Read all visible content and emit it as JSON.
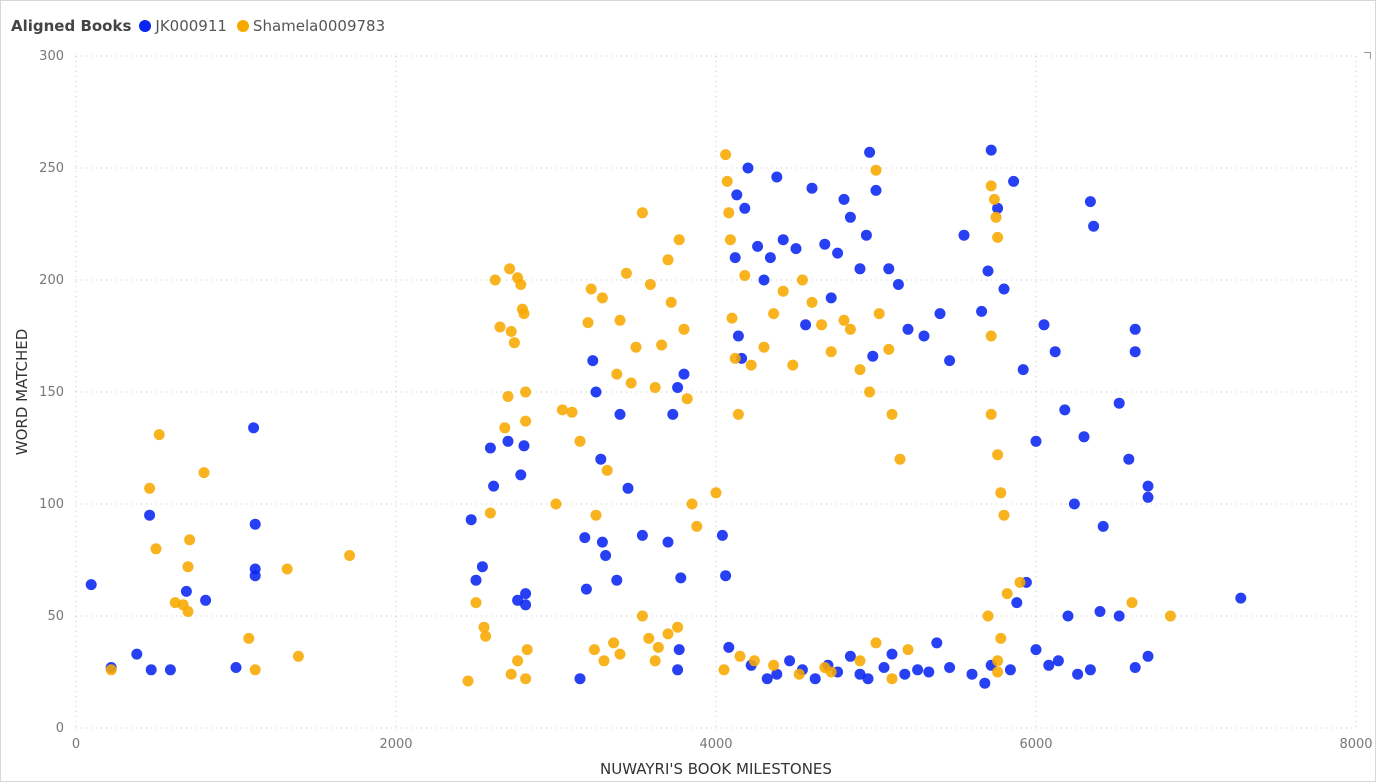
{
  "legend": {
    "title": "Aligned Books"
  },
  "colors": {
    "JK000911": "#0a25f2",
    "Shamela0009783": "#f7a900"
  },
  "chart_data": {
    "type": "scatter",
    "xlabel": "NUWAYRI'S BOOK MILESTONES",
    "ylabel": "WORD MATCHED",
    "xlim": [
      0,
      8000
    ],
    "ylim": [
      0,
      300
    ],
    "x_ticks": [
      "0",
      "2000",
      "4000",
      "6000",
      "8000"
    ],
    "y_ticks": [
      "0",
      "50",
      "100",
      "150",
      "200",
      "250",
      "300"
    ],
    "grid": true,
    "legend_position": "top-left",
    "series": [
      {
        "name": "JK000911",
        "points": [
          [
            95,
            64
          ],
          [
            220,
            27
          ],
          [
            380,
            33
          ],
          [
            460,
            95
          ],
          [
            470,
            26
          ],
          [
            590,
            26
          ],
          [
            690,
            61
          ],
          [
            810,
            57
          ],
          [
            1000,
            27
          ],
          [
            1110,
            134
          ],
          [
            1120,
            91
          ],
          [
            1120,
            71
          ],
          [
            1120,
            68
          ],
          [
            2470,
            93
          ],
          [
            2500,
            66
          ],
          [
            2540,
            72
          ],
          [
            2590,
            125
          ],
          [
            2610,
            108
          ],
          [
            2700,
            128
          ],
          [
            2760,
            57
          ],
          [
            2780,
            113
          ],
          [
            2800,
            126
          ],
          [
            2810,
            60
          ],
          [
            2810,
            55
          ],
          [
            3150,
            22
          ],
          [
            3180,
            85
          ],
          [
            3190,
            62
          ],
          [
            3230,
            164
          ],
          [
            3250,
            150
          ],
          [
            3280,
            120
          ],
          [
            3290,
            83
          ],
          [
            3310,
            77
          ],
          [
            3380,
            66
          ],
          [
            3400,
            140
          ],
          [
            3450,
            107
          ],
          [
            3540,
            86
          ],
          [
            3700,
            83
          ],
          [
            3730,
            140
          ],
          [
            3760,
            152
          ],
          [
            3770,
            35
          ],
          [
            3760,
            26
          ],
          [
            3780,
            67
          ],
          [
            3800,
            158
          ],
          [
            4040,
            86
          ],
          [
            4060,
            68
          ],
          [
            4080,
            36
          ],
          [
            4120,
            210
          ],
          [
            4130,
            238
          ],
          [
            4140,
            175
          ],
          [
            4160,
            165
          ],
          [
            4180,
            232
          ],
          [
            4200,
            250
          ],
          [
            4260,
            215
          ],
          [
            4300,
            200
          ],
          [
            4340,
            210
          ],
          [
            4380,
            246
          ],
          [
            4420,
            218
          ],
          [
            4500,
            214
          ],
          [
            4560,
            180
          ],
          [
            4600,
            241
          ],
          [
            4680,
            216
          ],
          [
            4720,
            192
          ],
          [
            4760,
            212
          ],
          [
            4800,
            236
          ],
          [
            4840,
            228
          ],
          [
            4900,
            205
          ],
          [
            4940,
            220
          ],
          [
            4960,
            257
          ],
          [
            4980,
            166
          ],
          [
            5000,
            240
          ],
          [
            5080,
            205
          ],
          [
            5140,
            198
          ],
          [
            5200,
            178
          ],
          [
            5300,
            175
          ],
          [
            5400,
            185
          ],
          [
            5460,
            164
          ],
          [
            5550,
            220
          ],
          [
            5660,
            186
          ],
          [
            5700,
            204
          ],
          [
            5720,
            258
          ],
          [
            5760,
            232
          ],
          [
            5800,
            196
          ],
          [
            5860,
            244
          ],
          [
            5920,
            160
          ],
          [
            6000,
            128
          ],
          [
            6050,
            180
          ],
          [
            6120,
            168
          ],
          [
            6180,
            142
          ],
          [
            6240,
            100
          ],
          [
            6300,
            130
          ],
          [
            6340,
            235
          ],
          [
            6360,
            224
          ],
          [
            6420,
            90
          ],
          [
            6520,
            145
          ],
          [
            6580,
            120
          ],
          [
            6620,
            178
          ],
          [
            6620,
            168
          ],
          [
            6700,
            108
          ],
          [
            6700,
            103
          ],
          [
            7280,
            58
          ],
          [
            4220,
            28
          ],
          [
            4320,
            22
          ],
          [
            4380,
            24
          ],
          [
            4460,
            30
          ],
          [
            4540,
            26
          ],
          [
            4620,
            22
          ],
          [
            4700,
            28
          ],
          [
            4760,
            25
          ],
          [
            4840,
            32
          ],
          [
            4900,
            24
          ],
          [
            4950,
            22
          ],
          [
            5050,
            27
          ],
          [
            5100,
            33
          ],
          [
            5180,
            24
          ],
          [
            5260,
            26
          ],
          [
            5330,
            25
          ],
          [
            5380,
            38
          ],
          [
            5460,
            27
          ],
          [
            5600,
            24
          ],
          [
            5680,
            20
          ],
          [
            5720,
            28
          ],
          [
            5840,
            26
          ],
          [
            5880,
            56
          ],
          [
            5940,
            65
          ],
          [
            6000,
            35
          ],
          [
            6080,
            28
          ],
          [
            6140,
            30
          ],
          [
            6200,
            50
          ],
          [
            6260,
            24
          ],
          [
            6340,
            26
          ],
          [
            6400,
            52
          ],
          [
            6520,
            50
          ],
          [
            6620,
            27
          ],
          [
            6700,
            32
          ]
        ]
      },
      {
        "name": "Shamela0009783",
        "points": [
          [
            220,
            26
          ],
          [
            460,
            107
          ],
          [
            500,
            80
          ],
          [
            520,
            131
          ],
          [
            620,
            56
          ],
          [
            670,
            55
          ],
          [
            700,
            52
          ],
          [
            700,
            72
          ],
          [
            710,
            84
          ],
          [
            800,
            114
          ],
          [
            1080,
            40
          ],
          [
            1120,
            26
          ],
          [
            1320,
            71
          ],
          [
            1390,
            32
          ],
          [
            1710,
            77
          ],
          [
            2450,
            21
          ],
          [
            2500,
            56
          ],
          [
            2550,
            45
          ],
          [
            2560,
            41
          ],
          [
            2590,
            96
          ],
          [
            2620,
            200
          ],
          [
            2650,
            179
          ],
          [
            2680,
            134
          ],
          [
            2700,
            148
          ],
          [
            2710,
            205
          ],
          [
            2720,
            177
          ],
          [
            2740,
            172
          ],
          [
            2760,
            201
          ],
          [
            2780,
            198
          ],
          [
            2790,
            187
          ],
          [
            2800,
            185
          ],
          [
            2810,
            150
          ],
          [
            2810,
            137
          ],
          [
            2820,
            35
          ],
          [
            2720,
            24
          ],
          [
            2810,
            22
          ],
          [
            2760,
            30
          ],
          [
            3000,
            100
          ],
          [
            3040,
            142
          ],
          [
            3100,
            141
          ],
          [
            3150,
            128
          ],
          [
            3200,
            181
          ],
          [
            3220,
            196
          ],
          [
            3250,
            95
          ],
          [
            3290,
            192
          ],
          [
            3320,
            115
          ],
          [
            3360,
            38
          ],
          [
            3380,
            158
          ],
          [
            3400,
            182
          ],
          [
            3440,
            203
          ],
          [
            3470,
            154
          ],
          [
            3500,
            170
          ],
          [
            3540,
            230
          ],
          [
            3590,
            198
          ],
          [
            3620,
            152
          ],
          [
            3660,
            171
          ],
          [
            3700,
            209
          ],
          [
            3720,
            190
          ],
          [
            3770,
            218
          ],
          [
            3800,
            178
          ],
          [
            3820,
            147
          ],
          [
            3850,
            100
          ],
          [
            3880,
            90
          ],
          [
            3540,
            50
          ],
          [
            3580,
            40
          ],
          [
            3640,
            36
          ],
          [
            3700,
            42
          ],
          [
            3760,
            45
          ],
          [
            3620,
            30
          ],
          [
            3400,
            33
          ],
          [
            3300,
            30
          ],
          [
            3240,
            35
          ],
          [
            4000,
            105
          ],
          [
            4060,
            256
          ],
          [
            4070,
            244
          ],
          [
            4080,
            230
          ],
          [
            4090,
            218
          ],
          [
            4100,
            183
          ],
          [
            4120,
            165
          ],
          [
            4140,
            140
          ],
          [
            4180,
            202
          ],
          [
            4220,
            162
          ],
          [
            4300,
            170
          ],
          [
            4360,
            185
          ],
          [
            4420,
            195
          ],
          [
            4480,
            162
          ],
          [
            4540,
            200
          ],
          [
            4600,
            190
          ],
          [
            4660,
            180
          ],
          [
            4720,
            168
          ],
          [
            4800,
            182
          ],
          [
            4840,
            178
          ],
          [
            4900,
            160
          ],
          [
            4960,
            150
          ],
          [
            5000,
            249
          ],
          [
            5020,
            185
          ],
          [
            5080,
            169
          ],
          [
            5100,
            140
          ],
          [
            5150,
            120
          ],
          [
            4050,
            26
          ],
          [
            4150,
            32
          ],
          [
            4240,
            30
          ],
          [
            4360,
            28
          ],
          [
            4520,
            24
          ],
          [
            4680,
            27
          ],
          [
            4720,
            25
          ],
          [
            4900,
            30
          ],
          [
            5000,
            38
          ],
          [
            5100,
            22
          ],
          [
            5200,
            35
          ],
          [
            5720,
            242
          ],
          [
            5740,
            236
          ],
          [
            5750,
            228
          ],
          [
            5760,
            219
          ],
          [
            5720,
            175
          ],
          [
            5720,
            140
          ],
          [
            5760,
            122
          ],
          [
            5780,
            105
          ],
          [
            5800,
            95
          ],
          [
            5760,
            30
          ],
          [
            5760,
            25
          ],
          [
            5780,
            40
          ],
          [
            5700,
            50
          ],
          [
            5820,
            60
          ],
          [
            5900,
            65
          ],
          [
            6600,
            56
          ],
          [
            6840,
            50
          ]
        ]
      }
    ]
  }
}
